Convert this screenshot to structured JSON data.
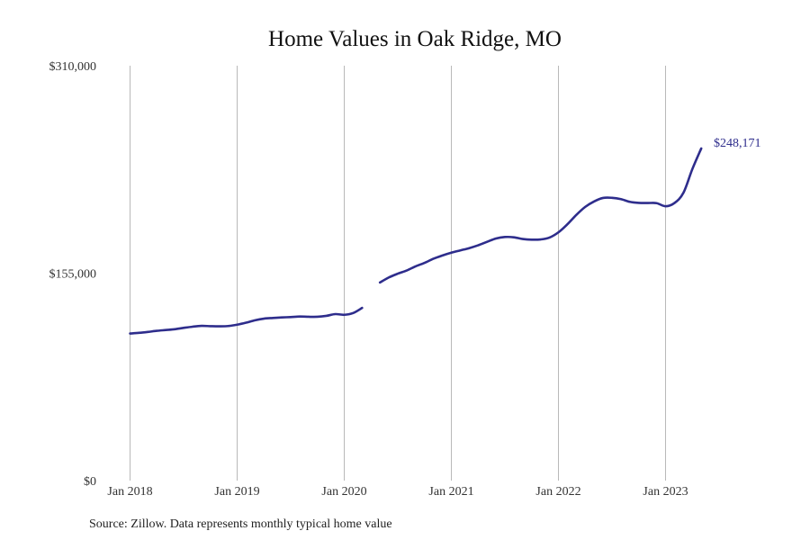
{
  "colors": {
    "series": "#2e2d8c",
    "grid": "#b9b9b9",
    "text": "#111111"
  },
  "chart_data": {
    "type": "line",
    "title": "Home Values in Oak Ridge, MO",
    "source": "Source: Zillow. Data represents monthly typical home value",
    "ylim": [
      0,
      310000
    ],
    "y_ticks": [
      {
        "value": 0,
        "label": "$0"
      },
      {
        "value": 155000,
        "label": "$155,000"
      },
      {
        "value": 310000,
        "label": "$310,000"
      }
    ],
    "xlim": [
      "2018-01",
      "2023-10"
    ],
    "x_ticks": [
      {
        "value": "2018-01",
        "label": "Jan 2018"
      },
      {
        "value": "2019-01",
        "label": "Jan 2019"
      },
      {
        "value": "2020-01",
        "label": "Jan 2020"
      },
      {
        "value": "2021-01",
        "label": "Jan 2021"
      },
      {
        "value": "2022-01",
        "label": "Jan 2022"
      },
      {
        "value": "2023-01",
        "label": "Jan 2023"
      }
    ],
    "grid": "vertical",
    "end_label": "$248,171",
    "series": [
      {
        "segments": [
          [
            [
              "2018-01",
              109900
            ],
            [
              "2018-02",
              110400
            ],
            [
              "2018-03",
              111100
            ],
            [
              "2018-04",
              111900
            ],
            [
              "2018-05",
              112500
            ],
            [
              "2018-06",
              113100
            ],
            [
              "2018-07",
              114100
            ],
            [
              "2018-08",
              115000
            ],
            [
              "2018-09",
              115600
            ],
            [
              "2018-10",
              115400
            ],
            [
              "2018-11",
              115300
            ],
            [
              "2018-12",
              115500
            ],
            [
              "2019-01",
              116500
            ],
            [
              "2019-02",
              118000
            ],
            [
              "2019-03",
              119800
            ],
            [
              "2019-04",
              121000
            ],
            [
              "2019-05",
              121500
            ],
            [
              "2019-06",
              121900
            ],
            [
              "2019-07",
              122200
            ],
            [
              "2019-08",
              122600
            ],
            [
              "2019-09",
              122400
            ],
            [
              "2019-10",
              122400
            ],
            [
              "2019-11",
              123100
            ],
            [
              "2019-12",
              124400
            ],
            [
              "2020-01",
              123900
            ],
            [
              "2020-02",
              125200
            ],
            [
              "2020-03",
              129000
            ]
          ],
          [
            [
              "2020-05",
              148000
            ],
            [
              "2020-06",
              151800
            ],
            [
              "2020-07",
              154600
            ],
            [
              "2020-08",
              157000
            ],
            [
              "2020-09",
              160100
            ],
            [
              "2020-10",
              162700
            ],
            [
              "2020-11",
              165800
            ],
            [
              "2020-12",
              168200
            ],
            [
              "2021-01",
              170300
            ],
            [
              "2021-02",
              172000
            ],
            [
              "2021-03",
              173700
            ],
            [
              "2021-04",
              175800
            ],
            [
              "2021-05",
              178400
            ],
            [
              "2021-06",
              180900
            ],
            [
              "2021-07",
              182000
            ],
            [
              "2021-08",
              181800
            ],
            [
              "2021-09",
              180500
            ],
            [
              "2021-10",
              180000
            ],
            [
              "2021-11",
              180200
            ],
            [
              "2021-12",
              181600
            ],
            [
              "2022-01",
              185500
            ],
            [
              "2022-02",
              191500
            ],
            [
              "2022-03",
              198500
            ],
            [
              "2022-04",
              204500
            ],
            [
              "2022-05",
              208600
            ],
            [
              "2022-06",
              211200
            ],
            [
              "2022-07",
              211300
            ],
            [
              "2022-08",
              210300
            ],
            [
              "2022-09",
              208300
            ],
            [
              "2022-10",
              207500
            ],
            [
              "2022-11",
              207400
            ],
            [
              "2022-12",
              207300
            ],
            [
              "2023-01",
              205000
            ],
            [
              "2023-02",
              207400
            ],
            [
              "2023-03",
              215000
            ],
            [
              "2023-04",
              232700
            ],
            [
              "2023-05",
              248171
            ]
          ]
        ]
      }
    ]
  }
}
